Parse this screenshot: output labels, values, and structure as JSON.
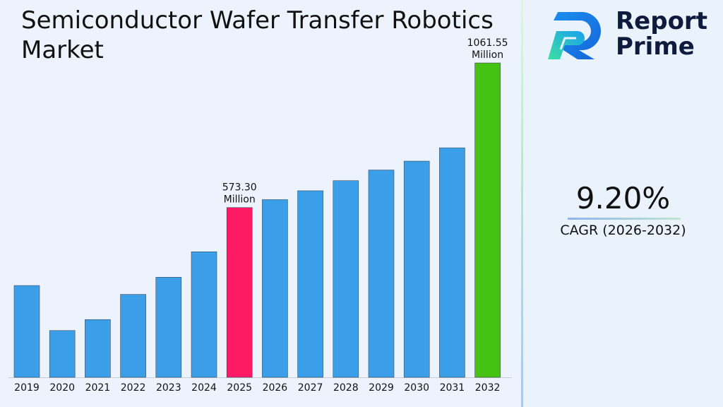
{
  "title": "Semiconductor Wafer Transfer Robotics Market",
  "logo": {
    "line1": "Report",
    "line2": "Prime"
  },
  "cagr": {
    "value": "9.20%",
    "label": "CAGR (2026-2032)"
  },
  "colors": {
    "default_bar": "#3a9fe8",
    "highlight_bar": "#ff1a66",
    "final_bar": "#46c212"
  },
  "chart_data": {
    "type": "bar",
    "categories": [
      "2019",
      "2020",
      "2021",
      "2022",
      "2023",
      "2024",
      "2025",
      "2026",
      "2027",
      "2028",
      "2029",
      "2030",
      "2031",
      "2032"
    ],
    "values": [
      310,
      158,
      195,
      280,
      338,
      424,
      573.3,
      600,
      630,
      664,
      700,
      730,
      775,
      1061.55
    ],
    "ylim": [
      0,
      1150
    ],
    "highlight_index": 6,
    "final_index": 13,
    "data_labels": [
      {
        "index": 6,
        "value": "573.30",
        "unit": "Million"
      },
      {
        "index": 13,
        "value": "1061.55",
        "unit": "Million"
      }
    ],
    "grid": false,
    "xlabel": "",
    "ylabel": ""
  }
}
